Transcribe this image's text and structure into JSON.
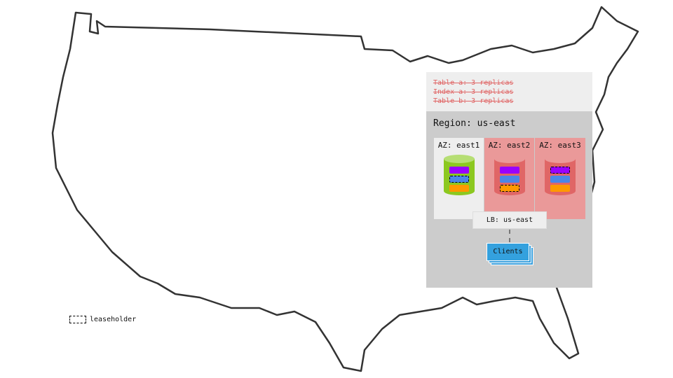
{
  "replicas_struck": [
    "Table a: 3 replicas",
    "Index a: 3 replicas",
    "Table b: 3 replicas"
  ],
  "region": {
    "title": "Region: us-east",
    "azs": [
      {
        "label": "AZ: east1",
        "status": "healthy",
        "leaseholder_bar": "blue"
      },
      {
        "label": "AZ: east2",
        "status": "failed",
        "leaseholder_bar": "orange"
      },
      {
        "label": "AZ: east3",
        "status": "failed",
        "leaseholder_bar": "purple"
      }
    ],
    "load_balancer": "LB: us-east",
    "clients": "Clients"
  },
  "legend": {
    "leaseholder": "leaseholder"
  },
  "colors": {
    "purple": "#9900ff",
    "blue": "#4a86e8",
    "orange": "#ff9900",
    "healthy": "#8cc820",
    "failed": "#e06666",
    "failed_bg": "#ea9999",
    "strike": "#e06666"
  }
}
